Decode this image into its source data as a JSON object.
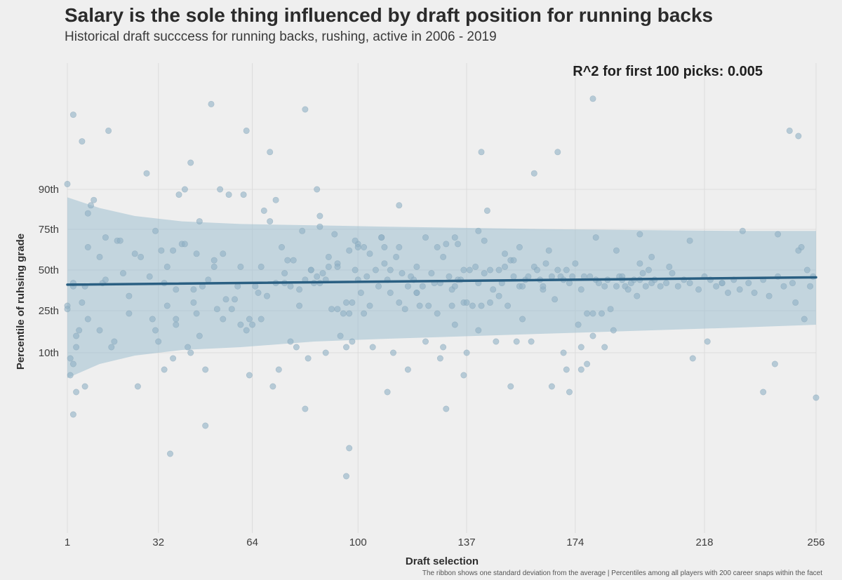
{
  "chart_data": {
    "type": "scatter",
    "title": "Salary is the sole thing influenced by draft position for running backs",
    "subtitle": "Historical draft succcess for running backs, rushing, active in 2006 - 2019",
    "xlabel": "Draft selection",
    "ylabel": "Percentile of ruhsing grade",
    "annotation": "R^2 for first 100 picks: 0.005",
    "caption": "The ribbon shows one standard deviation from the average | Percentiles among all players with 200 career snaps within the facet",
    "xlim": [
      1,
      256
    ],
    "xticks": [
      1,
      32,
      64,
      100,
      137,
      174,
      218,
      256
    ],
    "y_ticks": [
      {
        "label": "10th",
        "value": 10
      },
      {
        "label": "25th",
        "value": 25
      },
      {
        "label": "50th",
        "value": 50
      },
      {
        "label": "75th",
        "value": 75
      },
      {
        "label": "90th",
        "value": 90
      }
    ],
    "colors": {
      "points": "#8fb0c4",
      "trend": "#2a5f82",
      "ribbon": "#9ebfd0",
      "background": "#efefef",
      "grid": "#dcdcdc"
    },
    "trend": {
      "x": [
        1,
        256
      ],
      "y": [
        41,
        45.5
      ]
    },
    "ribbon": {
      "x": [
        1,
        12,
        24,
        40,
        60,
        85,
        110,
        140,
        170,
        200,
        230,
        256
      ],
      "upper": [
        87,
        83,
        80,
        78,
        77,
        76.5,
        76,
        75.5,
        75,
        74.5,
        74,
        74
      ],
      "lower": [
        1,
        6,
        9,
        11,
        12,
        14,
        15,
        16,
        17,
        18,
        19,
        20
      ]
    },
    "points": [
      [
        1,
        92
      ],
      [
        1,
        28
      ],
      [
        1,
        26
      ],
      [
        2,
        8
      ],
      [
        2,
        2
      ],
      [
        3,
        40
      ],
      [
        3,
        -12
      ],
      [
        3,
        6
      ],
      [
        3,
        118
      ],
      [
        3,
        42
      ],
      [
        4,
        -4
      ],
      [
        4,
        16
      ],
      [
        4,
        12
      ],
      [
        5,
        18
      ],
      [
        6,
        108
      ],
      [
        6,
        30
      ],
      [
        7,
        40
      ],
      [
        7,
        -2
      ],
      [
        8,
        81
      ],
      [
        8,
        64
      ],
      [
        9,
        84
      ],
      [
        10,
        86
      ],
      [
        12,
        58
      ],
      [
        12,
        18
      ],
      [
        13,
        42
      ],
      [
        14,
        70
      ],
      [
        15,
        112
      ],
      [
        16,
        12
      ],
      [
        17,
        14
      ],
      [
        18,
        68
      ],
      [
        19,
        68
      ],
      [
        20,
        48
      ],
      [
        22,
        34
      ],
      [
        25,
        -2
      ],
      [
        26,
        58
      ],
      [
        28,
        96
      ],
      [
        29,
        46
      ],
      [
        30,
        22
      ],
      [
        31,
        74
      ],
      [
        31,
        18
      ],
      [
        32,
        14
      ],
      [
        33,
        62
      ],
      [
        34,
        42
      ],
      [
        35,
        52
      ],
      [
        35,
        28
      ],
      [
        36,
        -26
      ],
      [
        37,
        8
      ],
      [
        37,
        62
      ],
      [
        38,
        38
      ],
      [
        38,
        20
      ],
      [
        39,
        88
      ],
      [
        40,
        66
      ],
      [
        41,
        66
      ],
      [
        41,
        90
      ],
      [
        42,
        12
      ],
      [
        43,
        10
      ],
      [
        43,
        100
      ],
      [
        44,
        38
      ],
      [
        45,
        60
      ],
      [
        45,
        24
      ],
      [
        46,
        78
      ],
      [
        46,
        16
      ],
      [
        47,
        40
      ],
      [
        48,
        4
      ],
      [
        49,
        44
      ],
      [
        50,
        122
      ],
      [
        51,
        52
      ],
      [
        51,
        56
      ],
      [
        52,
        26
      ],
      [
        53,
        90
      ],
      [
        54,
        60
      ],
      [
        55,
        32
      ],
      [
        56,
        88
      ],
      [
        57,
        26
      ],
      [
        58,
        32
      ],
      [
        59,
        40
      ],
      [
        60,
        52
      ],
      [
        61,
        88
      ],
      [
        62,
        18
      ],
      [
        62,
        112
      ],
      [
        63,
        2
      ],
      [
        64,
        20
      ],
      [
        65,
        40
      ],
      [
        66,
        36
      ],
      [
        67,
        52
      ],
      [
        67,
        22
      ],
      [
        68,
        82
      ],
      [
        69,
        34
      ],
      [
        70,
        104
      ],
      [
        71,
        -2
      ],
      [
        72,
        42
      ],
      [
        72,
        86
      ],
      [
        73,
        4
      ],
      [
        74,
        64
      ],
      [
        75,
        48
      ],
      [
        75,
        42
      ],
      [
        76,
        56
      ],
      [
        77,
        40
      ],
      [
        78,
        56
      ],
      [
        79,
        12
      ],
      [
        80,
        38
      ],
      [
        80,
        28
      ],
      [
        81,
        74
      ],
      [
        82,
        44
      ],
      [
        82,
        120
      ],
      [
        83,
        8
      ],
      [
        84,
        50
      ],
      [
        85,
        42
      ],
      [
        86,
        46
      ],
      [
        86,
        90
      ],
      [
        87,
        76
      ],
      [
        87,
        80
      ],
      [
        87,
        42
      ],
      [
        88,
        48
      ],
      [
        89,
        10
      ],
      [
        89,
        44
      ],
      [
        90,
        52
      ],
      [
        91,
        26
      ],
      [
        92,
        72
      ],
      [
        93,
        54
      ],
      [
        93,
        26
      ],
      [
        94,
        16
      ],
      [
        95,
        24
      ],
      [
        96,
        30
      ],
      [
        96,
        -34
      ],
      [
        97,
        24
      ],
      [
        97,
        -24
      ],
      [
        97,
        62
      ],
      [
        98,
        14
      ],
      [
        98,
        30
      ],
      [
        99,
        50
      ],
      [
        100,
        66
      ],
      [
        100,
        64
      ],
      [
        100,
        44
      ],
      [
        101,
        36
      ],
      [
        102,
        64
      ],
      [
        102,
        24
      ],
      [
        103,
        46
      ],
      [
        104,
        28
      ],
      [
        105,
        12
      ],
      [
        106,
        50
      ],
      [
        107,
        40
      ],
      [
        108,
        70
      ],
      [
        109,
        54
      ],
      [
        109,
        64
      ],
      [
        110,
        44
      ],
      [
        111,
        36
      ],
      [
        112,
        10
      ],
      [
        113,
        58
      ],
      [
        114,
        30
      ],
      [
        114,
        64
      ],
      [
        115,
        48
      ],
      [
        116,
        26
      ],
      [
        117,
        4
      ],
      [
        118,
        46
      ],
      [
        119,
        44
      ],
      [
        120,
        36
      ],
      [
        121,
        28
      ],
      [
        122,
        40
      ],
      [
        123,
        70
      ],
      [
        124,
        28
      ],
      [
        125,
        48
      ],
      [
        126,
        42
      ],
      [
        127,
        24
      ],
      [
        127,
        64
      ],
      [
        128,
        42
      ],
      [
        128,
        8
      ],
      [
        129,
        12
      ],
      [
        129,
        58
      ],
      [
        130,
        66
      ],
      [
        131,
        46
      ],
      [
        132,
        38
      ],
      [
        132,
        28
      ],
      [
        133,
        20
      ],
      [
        133,
        70
      ],
      [
        134,
        44
      ],
      [
        134,
        66
      ],
      [
        135,
        44
      ],
      [
        136,
        30
      ],
      [
        136,
        2
      ],
      [
        137,
        10
      ],
      [
        137,
        30
      ],
      [
        138,
        50
      ],
      [
        139,
        28
      ],
      [
        140,
        52
      ],
      [
        141,
        74
      ],
      [
        141,
        18
      ],
      [
        142,
        28
      ],
      [
        143,
        48
      ],
      [
        143,
        68
      ],
      [
        144,
        82
      ],
      [
        145,
        50
      ],
      [
        145,
        30
      ],
      [
        146,
        38
      ],
      [
        147,
        14
      ],
      [
        148,
        50
      ],
      [
        149,
        42
      ],
      [
        150,
        52
      ],
      [
        150,
        60
      ],
      [
        151,
        28
      ],
      [
        152,
        56
      ],
      [
        153,
        46
      ],
      [
        153,
        56
      ],
      [
        154,
        14
      ],
      [
        155,
        64
      ],
      [
        155,
        40
      ],
      [
        156,
        22
      ],
      [
        157,
        44
      ],
      [
        158,
        46
      ],
      [
        159,
        14
      ],
      [
        160,
        52
      ],
      [
        161,
        50
      ],
      [
        162,
        44
      ],
      [
        163,
        38
      ],
      [
        164,
        54
      ],
      [
        165,
        62
      ],
      [
        166,
        46
      ],
      [
        167,
        32
      ],
      [
        168,
        50
      ],
      [
        169,
        46
      ],
      [
        170,
        44
      ],
      [
        171,
        50
      ],
      [
        172,
        42
      ],
      [
        173,
        46
      ],
      [
        174,
        54
      ],
      [
        175,
        20
      ],
      [
        176,
        38
      ],
      [
        177,
        46
      ],
      [
        178,
        24
      ],
      [
        178,
        6
      ],
      [
        179,
        46
      ],
      [
        180,
        16
      ],
      [
        181,
        44
      ],
      [
        182,
        42
      ],
      [
        183,
        24
      ],
      [
        184,
        40
      ],
      [
        185,
        44
      ],
      [
        186,
        26
      ],
      [
        187,
        18
      ],
      [
        188,
        40
      ],
      [
        189,
        46
      ],
      [
        190,
        44
      ],
      [
        191,
        40
      ],
      [
        192,
        38
      ],
      [
        193,
        42
      ],
      [
        194,
        44
      ],
      [
        195,
        34
      ],
      [
        196,
        54
      ],
      [
        196,
        44
      ],
      [
        197,
        48
      ],
      [
        198,
        40
      ],
      [
        199,
        50
      ],
      [
        200,
        42
      ],
      [
        201,
        44
      ],
      [
        203,
        40
      ],
      [
        205,
        42
      ],
      [
        207,
        48
      ],
      [
        209,
        40
      ],
      [
        211,
        44
      ],
      [
        213,
        42
      ],
      [
        216,
        38
      ],
      [
        218,
        46
      ],
      [
        220,
        44
      ],
      [
        222,
        40
      ],
      [
        224,
        42
      ],
      [
        226,
        36
      ],
      [
        228,
        44
      ],
      [
        230,
        38
      ],
      [
        233,
        42
      ],
      [
        235,
        36
      ],
      [
        238,
        44
      ],
      [
        240,
        34
      ],
      [
        243,
        46
      ],
      [
        245,
        40
      ],
      [
        247,
        112
      ],
      [
        248,
        42
      ],
      [
        249,
        30
      ],
      [
        250,
        110
      ],
      [
        251,
        64
      ],
      [
        252,
        22
      ],
      [
        253,
        50
      ],
      [
        254,
        40
      ],
      [
        255,
        46
      ],
      [
        256,
        -6
      ],
      [
        70,
        78
      ],
      [
        180,
        24
      ],
      [
        180,
        124
      ],
      [
        160,
        96
      ],
      [
        142,
        104
      ],
      [
        168,
        104
      ],
      [
        114,
        84
      ],
      [
        120,
        36
      ],
      [
        123,
        14
      ],
      [
        130,
        -10
      ],
      [
        24,
        60
      ],
      [
        14,
        44
      ],
      [
        22,
        24
      ],
      [
        8,
        22
      ],
      [
        34,
        4
      ],
      [
        48,
        -16
      ],
      [
        63,
        22
      ],
      [
        82,
        -10
      ],
      [
        90,
        58
      ],
      [
        96,
        12
      ],
      [
        104,
        60
      ],
      [
        110,
        -4
      ],
      [
        148,
        34
      ],
      [
        152,
        -2
      ],
      [
        166,
        -2
      ],
      [
        171,
        4
      ],
      [
        172,
        -4
      ],
      [
        176,
        4
      ],
      [
        184,
        12
      ],
      [
        190,
        46
      ],
      [
        200,
        58
      ],
      [
        213,
        68
      ],
      [
        224,
        42
      ],
      [
        231,
        74
      ],
      [
        238,
        -4
      ],
      [
        242,
        6
      ],
      [
        250,
        62
      ],
      [
        243,
        72
      ],
      [
        219,
        14
      ],
      [
        214,
        8
      ],
      [
        206,
        52
      ],
      [
        196,
        72
      ],
      [
        188,
        62
      ],
      [
        181,
        70
      ],
      [
        176,
        12
      ],
      [
        170,
        10
      ],
      [
        163,
        40
      ],
      [
        156,
        40
      ],
      [
        141,
        42
      ],
      [
        136,
        50
      ],
      [
        133,
        40
      ],
      [
        120,
        52
      ],
      [
        117,
        40
      ],
      [
        111,
        50
      ],
      [
        108,
        70
      ],
      [
        99,
        68
      ],
      [
        93,
        52
      ],
      [
        84,
        50
      ],
      [
        77,
        14
      ],
      [
        60,
        20
      ],
      [
        54,
        22
      ],
      [
        44,
        30
      ],
      [
        38,
        22
      ]
    ]
  }
}
